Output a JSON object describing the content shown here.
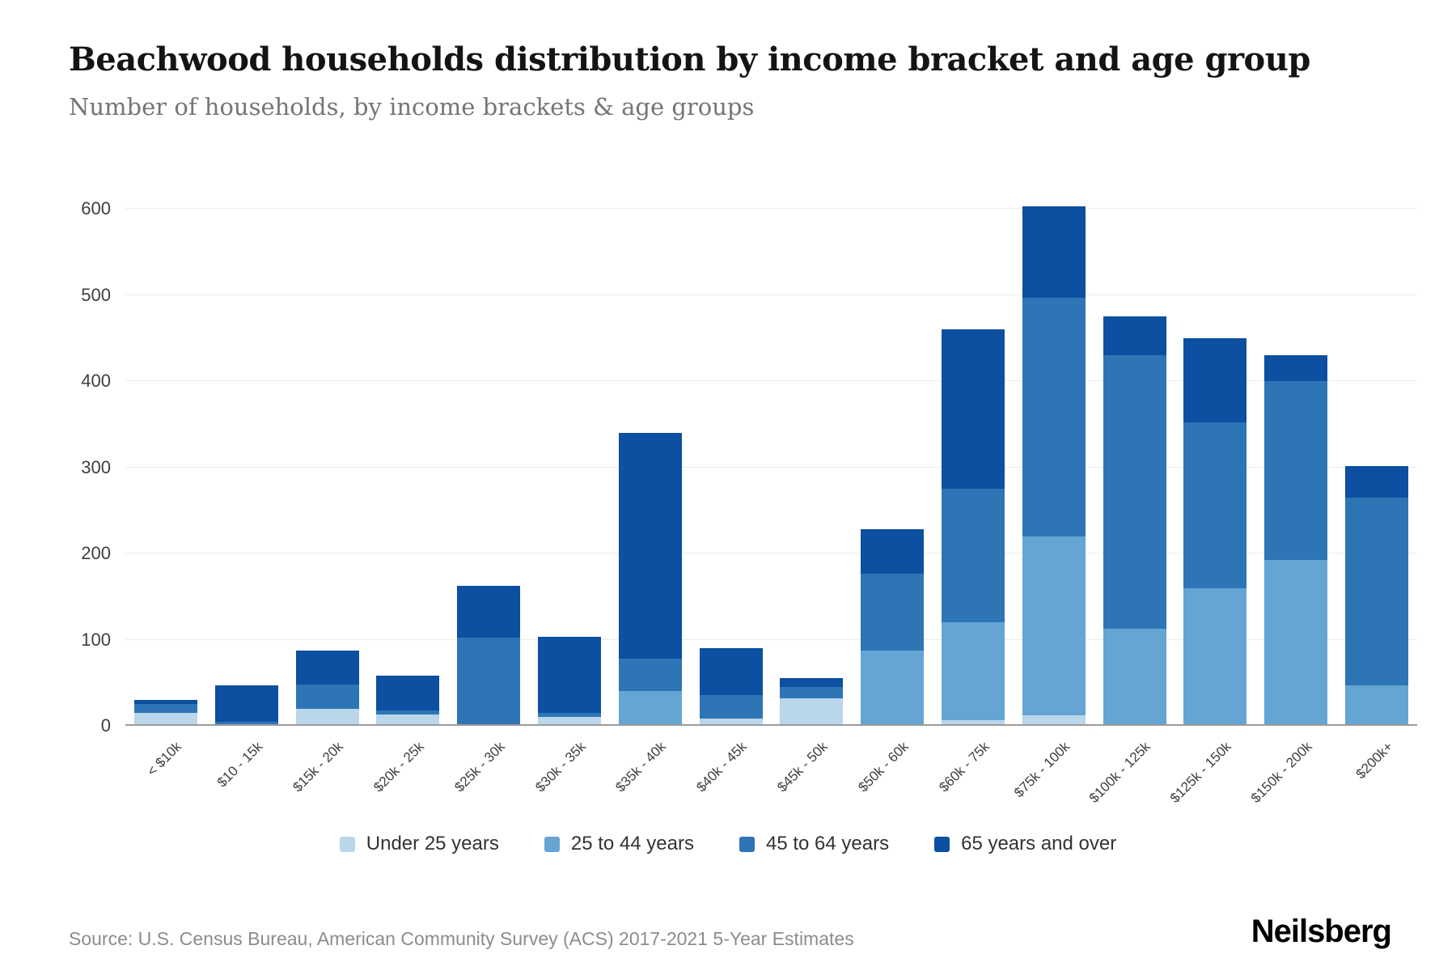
{
  "footer": {
    "source": "Source: U.S. Census Bureau, American Community Survey (ACS) 2017-2021 5-Year Estimates",
    "brand": "Neilsberg"
  },
  "chart_data": {
    "type": "bar",
    "stacked": true,
    "title": "Beachwood households distribution by income bracket and age group",
    "subtitle": "Number of households, by income brackets & age groups",
    "xlabel": "",
    "ylabel": "",
    "ylim": [
      0,
      620
    ],
    "yticks": [
      0,
      100,
      200,
      300,
      400,
      500,
      600
    ],
    "grid": true,
    "legend_position": "bottom",
    "categories": [
      "< $10k",
      "$10 - 15k",
      "$15k - 20k",
      "$20k - 25k",
      "$25k - 30k",
      "$30k - 35k",
      "$35k - 40k",
      "$40k - 45k",
      "$45k - 50k",
      "$50k - 60k",
      "$60k - 75k",
      "$75k - 100k",
      "$100k - 125k",
      "$125k - 150k",
      "$150k - 200k",
      "$200k+"
    ],
    "series": [
      {
        "name": "Under 25 years",
        "color": "#b9d6ea",
        "values": [
          15,
          0,
          20,
          13,
          0,
          10,
          0,
          8,
          32,
          0,
          7,
          12,
          0,
          0,
          0,
          0
        ]
      },
      {
        "name": "25 to 44 years",
        "color": "#64a5d3",
        "values": [
          0,
          0,
          0,
          0,
          0,
          0,
          40,
          0,
          0,
          87,
          113,
          208,
          113,
          160,
          193,
          47
        ]
      },
      {
        "name": "45 to 64 years",
        "color": "#2e75b6",
        "values": [
          10,
          5,
          28,
          5,
          102,
          5,
          38,
          28,
          13,
          90,
          155,
          277,
          317,
          192,
          207,
          218
        ]
      },
      {
        "name": "65 years and over",
        "color": "#0d4fa0",
        "values": [
          5,
          42,
          39,
          40,
          61,
          88,
          262,
          54,
          10,
          51,
          185,
          106,
          45,
          98,
          30,
          37
        ]
      }
    ]
  }
}
